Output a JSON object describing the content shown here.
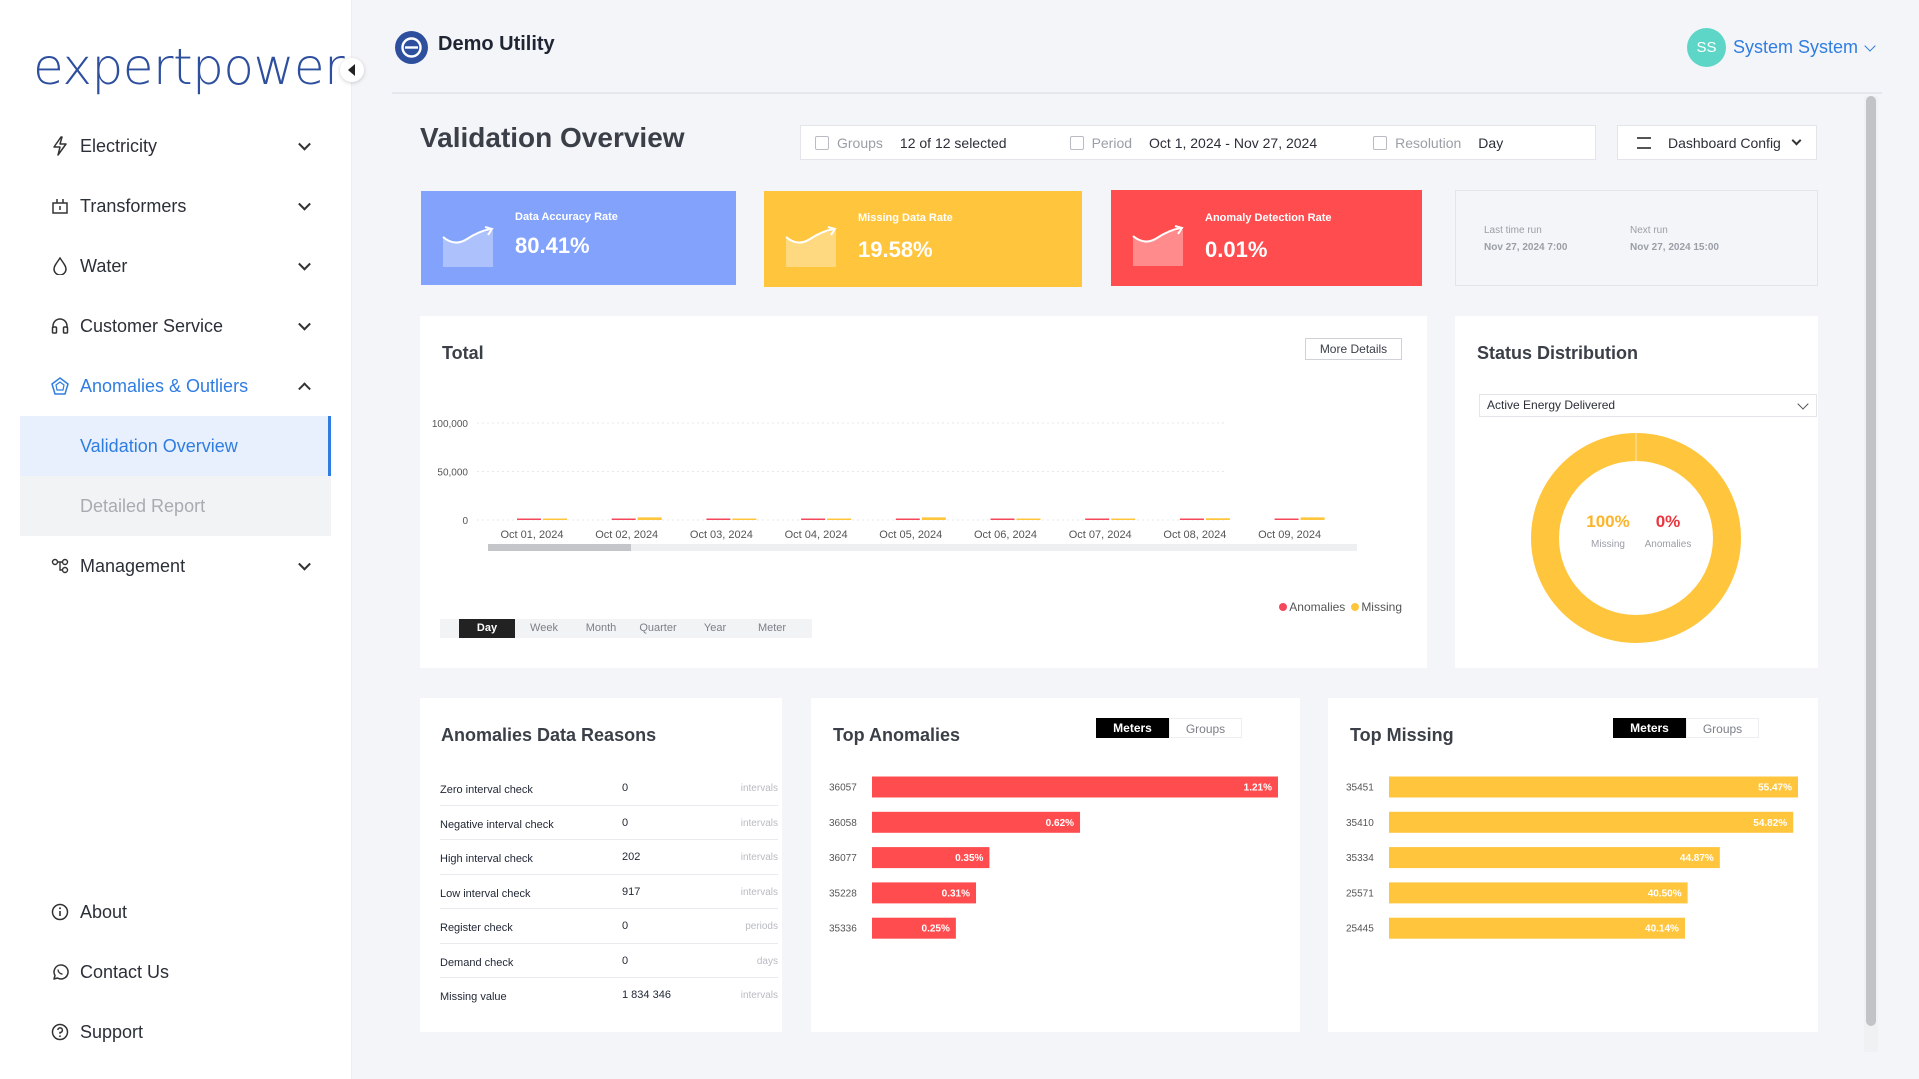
{
  "app": {
    "logo": "expertpower"
  },
  "sidebar": {
    "items": [
      {
        "label": "Electricity"
      },
      {
        "label": "Transformers"
      },
      {
        "label": "Water"
      },
      {
        "label": "Customer Service"
      },
      {
        "label": "Anomalies & Outliers"
      },
      {
        "label": "Management"
      }
    ],
    "sub_items": [
      {
        "label": "Validation Overview"
      },
      {
        "label": "Detailed Report"
      }
    ],
    "bottom": [
      {
        "label": "About"
      },
      {
        "label": "Contact Us"
      },
      {
        "label": "Support"
      }
    ]
  },
  "header": {
    "org": "Demo Utility",
    "user_initials": "SS",
    "user_name": "System System"
  },
  "page": {
    "title": "Validation Overview",
    "filters": {
      "groups_label": "Groups",
      "groups_value": "12 of 12 selected",
      "period_label": "Period",
      "period_value": "Oct 1, 2024 - Nov 27, 2024",
      "resolution_label": "Resolution",
      "resolution_value": "Day"
    },
    "dashboard_config": "Dashboard Config"
  },
  "kpis": [
    {
      "label": "Data Accuracy Rate",
      "value": "80.41%",
      "color": "#82a2fc"
    },
    {
      "label": "Missing Data Rate",
      "value": "19.58%",
      "color": "#ffc53d"
    },
    {
      "label": "Anomaly Detection Rate",
      "value": "0.01%",
      "color": "#ff4d4f"
    }
  ],
  "runs": {
    "last_label": "Last time run",
    "last_value": "Nov 27, 2024 7:00",
    "next_label": "Next run",
    "next_value": "Nov 27, 2024 15:00"
  },
  "total": {
    "title": "Total",
    "more_details": "More Details",
    "legend": {
      "anomalies": "Anomalies",
      "missing": "Missing"
    },
    "ranges": [
      "Day",
      "Week",
      "Month",
      "Quarter",
      "Year",
      "Meter"
    ],
    "selected_range": "Day"
  },
  "chart_data": [
    {
      "type": "bar",
      "title": "Total",
      "categories": [
        "Oct 01, 2024",
        "Oct 02, 2024",
        "Oct 03, 2024",
        "Oct 04, 2024",
        "Oct 05, 2024",
        "Oct 06, 2024",
        "Oct 07, 2024",
        "Oct 08, 2024",
        "Oct 09, 2024"
      ],
      "y_ticks": [
        "100,000",
        "50,000",
        "0"
      ],
      "ylim": [
        0,
        100000
      ],
      "series": [
        {
          "name": "Anomalies",
          "color": "#f5475b",
          "values": [
            200,
            200,
            200,
            200,
            200,
            200,
            200,
            200,
            200
          ]
        },
        {
          "name": "Missing",
          "color": "#ffc53d",
          "values": [
            1200,
            2700,
            1200,
            1200,
            2700,
            1200,
            1200,
            1800,
            2700
          ]
        }
      ],
      "legend": "bottom-right",
      "grid": true
    },
    {
      "type": "pie",
      "title": "Status Distribution",
      "labels": [
        "Missing",
        "Anomalies"
      ],
      "values": [
        100,
        0
      ],
      "colors": [
        "#ffc53d",
        "#f5475b"
      ]
    },
    {
      "type": "bar",
      "title": "Top Anomalies",
      "orientation": "horizontal",
      "categories": [
        "36057",
        "36058",
        "36077",
        "35228",
        "35336"
      ],
      "values": [
        1.21,
        0.62,
        0.35,
        0.31,
        0.25
      ],
      "labels": [
        "1.21%",
        "0.62%",
        "0.35%",
        "0.31%",
        "0.25%"
      ],
      "color": "#ff4d4f"
    },
    {
      "type": "bar",
      "title": "Top Missing",
      "orientation": "horizontal",
      "categories": [
        "35451",
        "35410",
        "35334",
        "25571",
        "25445"
      ],
      "values": [
        55.47,
        54.82,
        44.87,
        40.5,
        40.14
      ],
      "labels": [
        "55.47%",
        "54.82%",
        "44.87%",
        "40.50%",
        "40.14%"
      ],
      "color": "#ffc53d"
    }
  ],
  "status": {
    "title": "Status Distribution",
    "select_value": "Active Energy Delivered",
    "missing_pct": "100%",
    "missing_label": "Missing",
    "anomalies_pct": "0%",
    "anomalies_label": "Anomalies"
  },
  "reasons": {
    "title": "Anomalies Data Reasons",
    "rows": [
      {
        "name": "Zero interval check",
        "value": "0",
        "unit": "intervals"
      },
      {
        "name": "Negative interval check",
        "value": "0",
        "unit": "intervals"
      },
      {
        "name": "High interval check",
        "value": "202",
        "unit": "intervals"
      },
      {
        "name": "Low interval check",
        "value": "917",
        "unit": "intervals"
      },
      {
        "name": "Register check",
        "value": "0",
        "unit": "periods"
      },
      {
        "name": "Demand check",
        "value": "0",
        "unit": "days"
      },
      {
        "name": "Missing value",
        "value": "1 834 346",
        "unit": "intervals"
      }
    ]
  },
  "top_anomalies": {
    "title": "Top Anomalies",
    "tab_meters": "Meters",
    "tab_groups": "Groups"
  },
  "top_missing": {
    "title": "Top Missing",
    "tab_meters": "Meters",
    "tab_groups": "Groups"
  }
}
